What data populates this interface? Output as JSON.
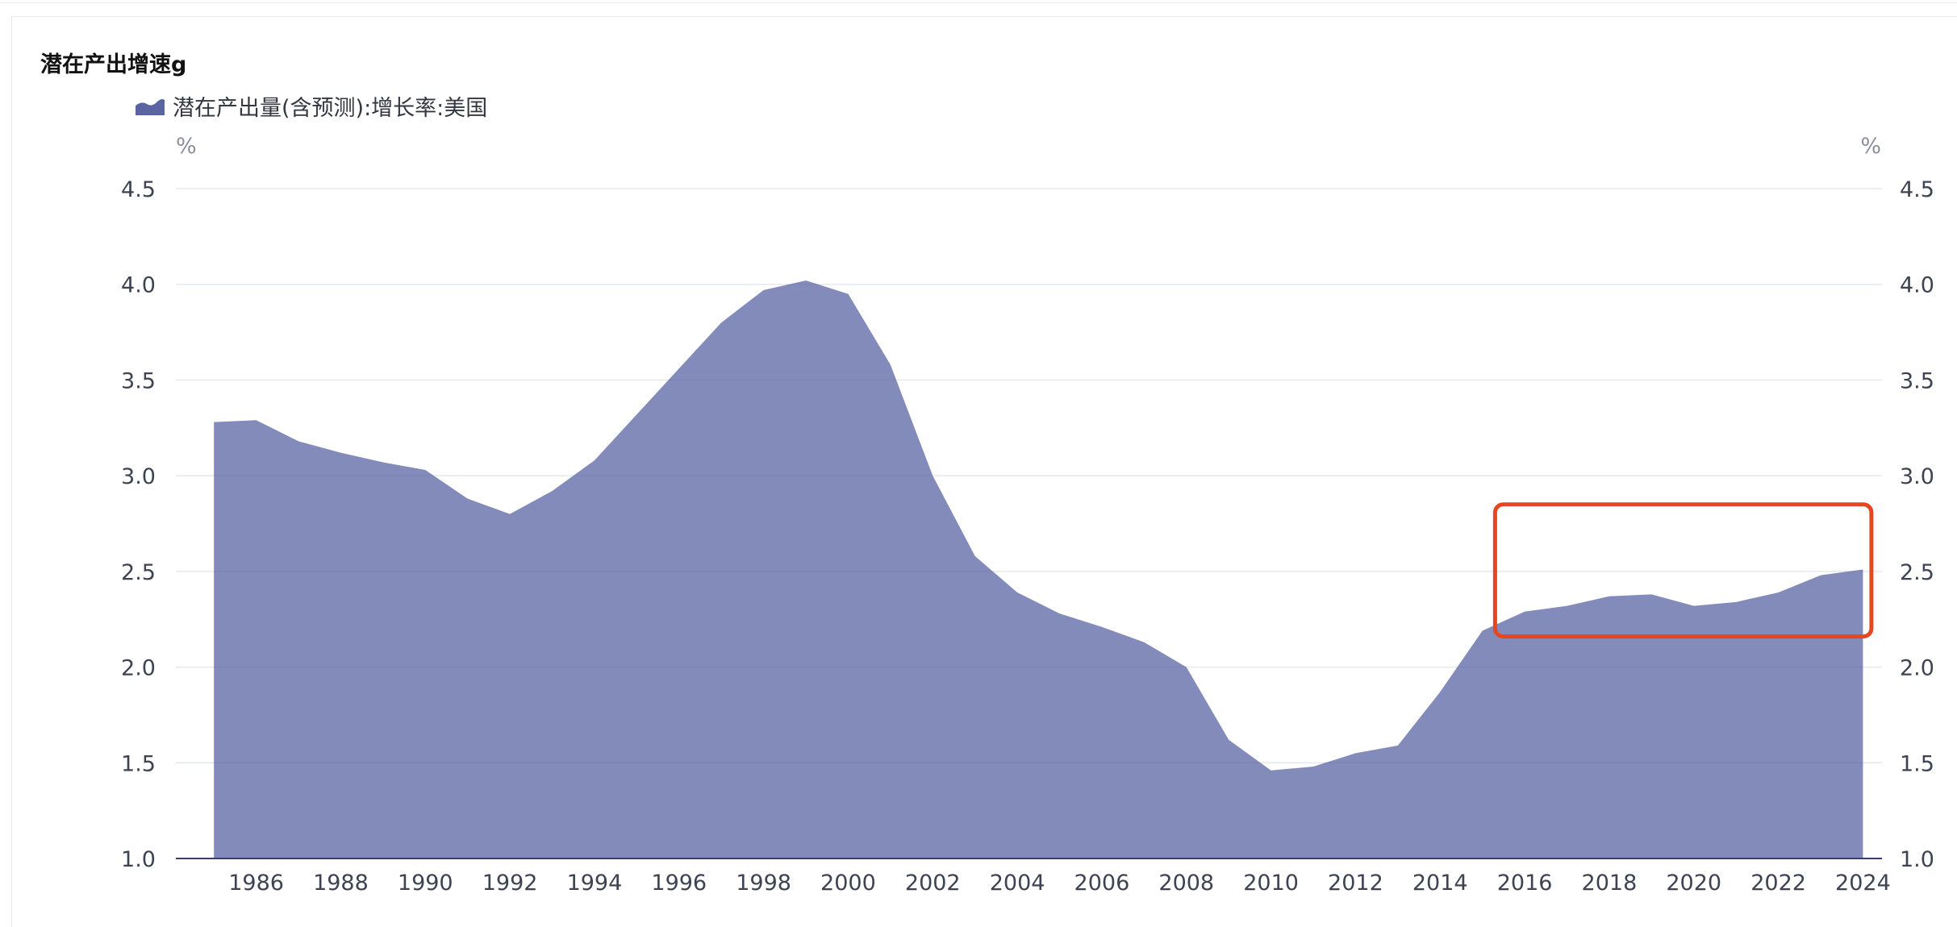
{
  "title": "潜在产出增速g",
  "chart_data": {
    "type": "area",
    "title": "潜在产出增速g",
    "series": [
      {
        "name": "潜在产出量(含预测):增长率:美国",
        "color": "#5a64a3",
        "x": [
          1985,
          1986,
          1987,
          1988,
          1989,
          1990,
          1991,
          1992,
          1993,
          1994,
          1995,
          1996,
          1997,
          1998,
          1999,
          2000,
          2001,
          2002,
          2003,
          2004,
          2005,
          2006,
          2007,
          2008,
          2009,
          2010,
          2011,
          2012,
          2013,
          2014,
          2015,
          2016,
          2017,
          2018,
          2019,
          2020,
          2021,
          2022,
          2023,
          2024
        ],
        "values": [
          3.28,
          3.29,
          3.18,
          3.12,
          3.07,
          3.03,
          2.88,
          2.8,
          2.92,
          3.08,
          3.32,
          3.56,
          3.8,
          3.97,
          4.02,
          3.95,
          3.58,
          3.0,
          2.58,
          2.39,
          2.28,
          2.21,
          2.13,
          2.0,
          1.62,
          1.46,
          1.48,
          1.55,
          1.59,
          1.87,
          2.19,
          2.29,
          2.32,
          2.37,
          2.38,
          2.32,
          2.34,
          2.39,
          2.48,
          2.51
        ]
      }
    ],
    "ylim": [
      1.0,
      4.5
    ],
    "y_ticks": [
      "1.0",
      "1.5",
      "2.0",
      "2.5",
      "3.0",
      "3.5",
      "4.0",
      "4.5"
    ],
    "x_ticks": [
      "1986",
      "1988",
      "1990",
      "1992",
      "1994",
      "1996",
      "1998",
      "2000",
      "2002",
      "2004",
      "2006",
      "2008",
      "2010",
      "2012",
      "2014",
      "2016",
      "2018",
      "2020",
      "2022",
      "2024"
    ],
    "y_unit_left": "%",
    "y_unit_right": "%",
    "grid": true,
    "legend_position": "top-left",
    "annotation": {
      "type": "highlight-box",
      "color": "#e8461e",
      "x_from": 2015.3,
      "x_to": 2024.2,
      "y_from": 2.16,
      "y_to": 2.85
    }
  }
}
